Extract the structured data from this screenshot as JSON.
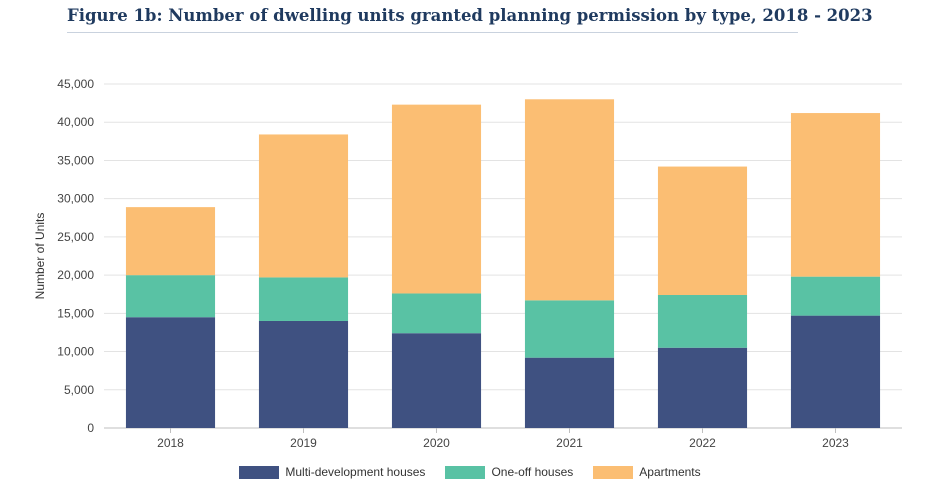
{
  "page": {
    "title": "Figure 1b: Number of dwelling units granted planning permission by type, 2018 - 2023"
  },
  "chart_data": {
    "type": "bar",
    "stacked": true,
    "categories": [
      "2018",
      "2019",
      "2020",
      "2021",
      "2022",
      "2023"
    ],
    "series": [
      {
        "name": "Multi-development houses",
        "color": "#3f5181",
        "values": [
          14493,
          14000,
          12400,
          9200,
          10500,
          14700
        ]
      },
      {
        "name": "One-off houses",
        "color": "#59c2a4",
        "values": [
          5500,
          5700,
          5200,
          7500,
          6900,
          5100
        ]
      },
      {
        "name": "Apartments",
        "color": "#fbbe73",
        "values": [
          8900,
          18700,
          24700,
          26300,
          16800,
          21400
        ]
      }
    ],
    "ylabel": "Number of Units",
    "xlabel": "",
    "ylim": [
      0,
      45000
    ],
    "yticks": [
      0,
      5000,
      10000,
      15000,
      20000,
      25000,
      30000,
      35000,
      40000,
      45000
    ],
    "ytick_labels": [
      "0",
      "5,000",
      "10,000",
      "15,000",
      "20,000",
      "25,000",
      "30,000",
      "35,000",
      "40,000",
      "45,000"
    ],
    "grid": true,
    "legend_position": "bottom"
  }
}
